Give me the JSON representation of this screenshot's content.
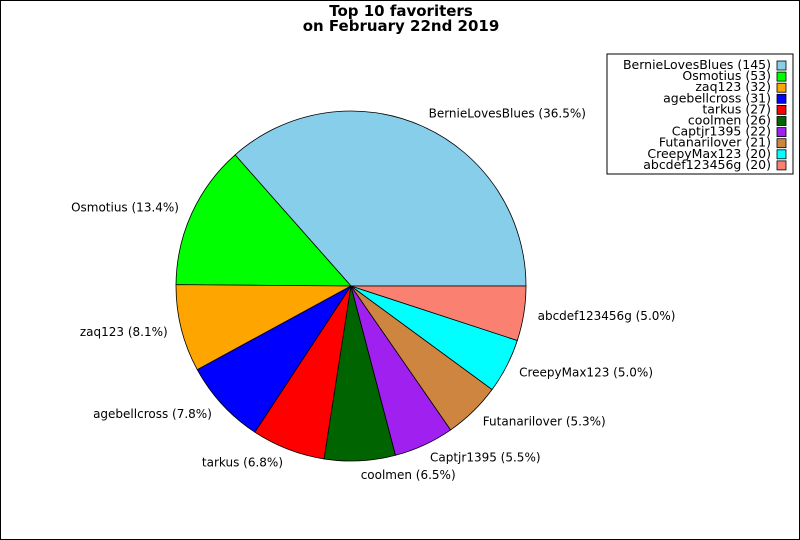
{
  "chart_data": {
    "type": "pie",
    "title": "Top 10 favoriters",
    "subtitle": "on February 22nd 2019",
    "start_angle": "counterclockwise from 3 o'clock",
    "legend_placement": "top-right",
    "slices": [
      {
        "name": "BernieLovesBlues",
        "value": 145,
        "percent_label": "BernieLovesBlues (36.5%)",
        "legend_label": "BernieLovesBlues (145)",
        "color": "#87CEEB"
      },
      {
        "name": "Osmotius",
        "value": 53,
        "percent_label": "Osmotius (13.4%)",
        "legend_label": "Osmotius (53)",
        "color": "#00FF00"
      },
      {
        "name": "zaq123",
        "value": 32,
        "percent_label": "zaq123 (8.1%)",
        "legend_label": "zaq123 (32)",
        "color": "#FFA500"
      },
      {
        "name": "agebellcross",
        "value": 31,
        "percent_label": "agebellcross (7.8%)",
        "legend_label": "agebellcross (31)",
        "color": "#0000FF"
      },
      {
        "name": "tarkus",
        "value": 27,
        "percent_label": "tarkus (6.8%)",
        "legend_label": "tarkus (27)",
        "color": "#FF0000"
      },
      {
        "name": "coolmen",
        "value": 26,
        "percent_label": "coolmen (6.5%)",
        "legend_label": "coolmen (26)",
        "color": "#006400"
      },
      {
        "name": "Captjr1395",
        "value": 22,
        "percent_label": "Captjr1395 (5.5%)",
        "legend_label": "Captjr1395 (22)",
        "color": "#A020F0"
      },
      {
        "name": "Futanarilover",
        "value": 21,
        "percent_label": "Futanarilover (5.3%)",
        "legend_label": "Futanarilover (21)",
        "color": "#CD853F"
      },
      {
        "name": "CreepyMax123",
        "value": 20,
        "percent_label": "CreepyMax123 (5.0%)",
        "legend_label": "CreepyMax123 (20)",
        "color": "#00FFFF"
      },
      {
        "name": "abcdef123456g",
        "value": 20,
        "percent_label": "abcdef123456g (5.0%)",
        "legend_label": "abcdef123456g (20)",
        "color": "#FA8072"
      }
    ]
  }
}
